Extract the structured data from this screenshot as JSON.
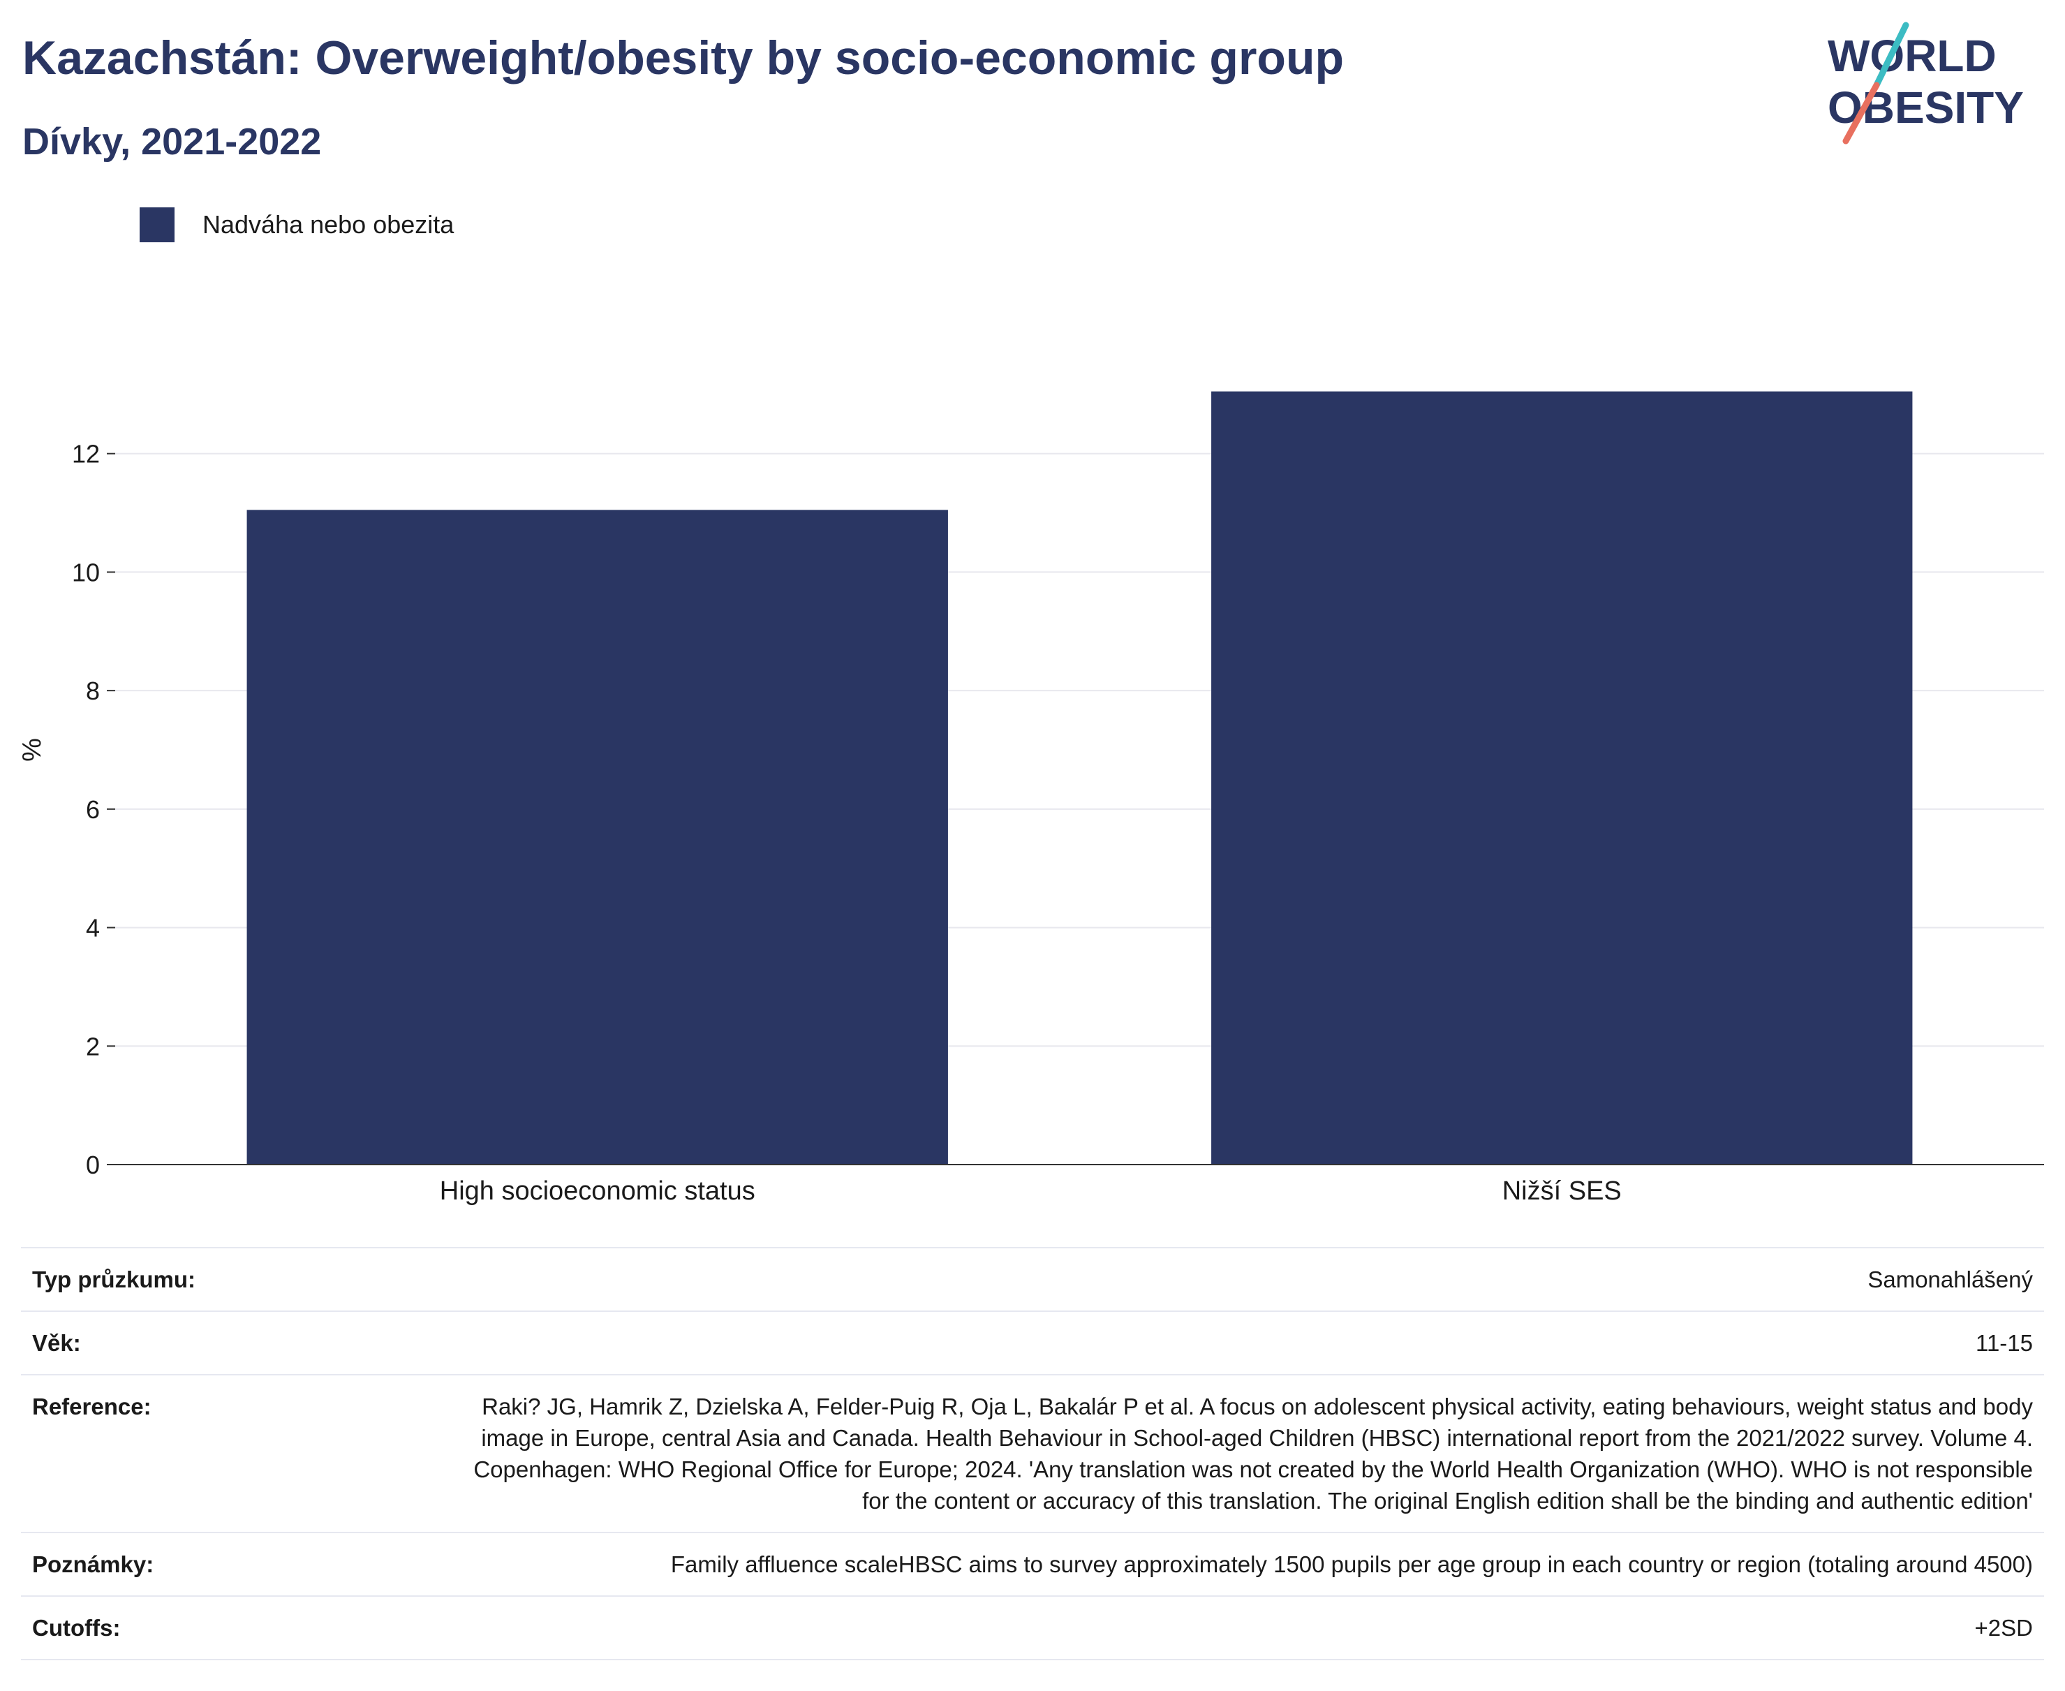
{
  "header": {
    "title": "Kazachstán: Overweight/obesity by socio-economic group",
    "subtitle": "Dívky, 2021-2022"
  },
  "logo": {
    "line1": "WORLD",
    "line2": "OBESITY",
    "accent_teal": "#3cbcc3",
    "accent_coral": "#e8705f"
  },
  "legend": {
    "label": "Nadváha nebo obezita",
    "color": "#2a3663"
  },
  "chart_data": {
    "type": "bar",
    "title": "Kazachstán: Overweight/obesity by socio-economic group",
    "subtitle": "Dívky, 2021-2022",
    "categories": [
      "High socioeconomic status",
      "Nižší SES"
    ],
    "series": [
      {
        "name": "Nadváha nebo obezita",
        "values": [
          11.05,
          13.05
        ],
        "color": "#2a3663"
      }
    ],
    "ylabel": "%",
    "xlabel": "",
    "ylim": [
      0,
      14
    ],
    "yticks": [
      0,
      2,
      4,
      6,
      8,
      10,
      12
    ],
    "grid": true,
    "legend_position": "top-left"
  },
  "info": [
    {
      "label": "Typ průzkumu:",
      "value": "Samonahlášený"
    },
    {
      "label": "Věk:",
      "value": "11-15"
    },
    {
      "label": "Reference:",
      "value": "Raki? JG, Hamrik Z, Dzielska A, Felder-Puig R, Oja L, Bakalár P et al. A focus on adolescent physical activity, eating behaviours, weight status and body image in Europe, central Asia and Canada. Health Behaviour in School-aged Children (HBSC) international report from the 2021/2022 survey. Volume 4. Copenhagen: WHO Regional Office for Europe; 2024. 'Any translation was not created by the World Health Organization (WHO). WHO is not responsible for the content or accuracy of this translation. The original English edition shall be the binding and authentic edition'"
    },
    {
      "label": "Poznámky:",
      "value": "Family affluence scaleHBSC aims to survey approximately 1500 pupils per age group in each country or region (totaling around 4500)"
    },
    {
      "label": "Cutoffs:",
      "value": "+2SD"
    }
  ]
}
